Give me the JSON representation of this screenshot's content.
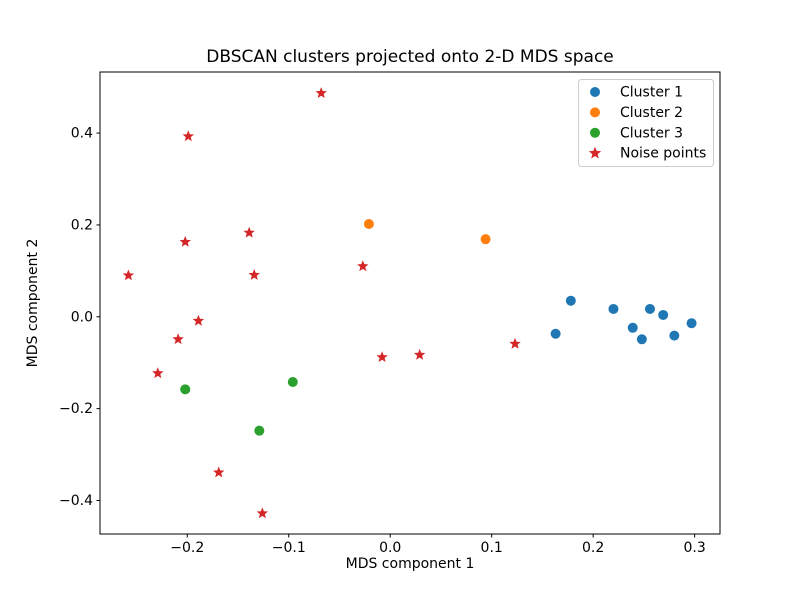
{
  "chart_data": {
    "type": "scatter",
    "title": "DBSCAN clusters projected onto 2-D MDS space",
    "xlabel": "MDS component 1",
    "ylabel": "MDS component 2",
    "xlim": [
      -0.286,
      0.325
    ],
    "ylim": [
      -0.473,
      0.533
    ],
    "xticks": [
      -0.2,
      -0.1,
      0.0,
      0.1,
      0.2,
      0.3
    ],
    "yticks": [
      -0.4,
      -0.2,
      0.0,
      0.2,
      0.4
    ],
    "grid": false,
    "background_color": "#ffffff",
    "spine_color": "#000000",
    "legend": {
      "position": "upper right",
      "border_color": "#cccccc",
      "background": "#ffffff"
    },
    "series": [
      {
        "name": "Cluster 1",
        "marker": "circle",
        "color": "#1f77b4",
        "points": [
          [
            0.163,
            -0.037
          ],
          [
            0.178,
            0.035
          ],
          [
            0.22,
            0.017
          ],
          [
            0.239,
            -0.024
          ],
          [
            0.248,
            -0.049
          ],
          [
            0.256,
            0.017
          ],
          [
            0.269,
            0.004
          ],
          [
            0.28,
            -0.041
          ],
          [
            0.297,
            -0.014
          ]
        ]
      },
      {
        "name": "Cluster 2",
        "marker": "circle",
        "color": "#ff7f0e",
        "points": [
          [
            -0.021,
            0.202
          ],
          [
            0.094,
            0.169
          ]
        ]
      },
      {
        "name": "Cluster 3",
        "marker": "circle",
        "color": "#2ca02c",
        "points": [
          [
            -0.202,
            -0.158
          ],
          [
            -0.096,
            -0.142
          ],
          [
            -0.129,
            -0.248
          ]
        ]
      },
      {
        "name": "Noise points",
        "marker": "star",
        "color": "#d62728",
        "points": [
          [
            -0.068,
            0.487
          ],
          [
            -0.199,
            0.393
          ],
          [
            -0.139,
            0.183
          ],
          [
            -0.202,
            0.163
          ],
          [
            -0.258,
            0.09
          ],
          [
            -0.134,
            0.091
          ],
          [
            -0.027,
            0.11
          ],
          [
            -0.189,
            -0.009
          ],
          [
            -0.209,
            -0.049
          ],
          [
            -0.229,
            -0.123
          ],
          [
            -0.008,
            -0.088
          ],
          [
            0.029,
            -0.083
          ],
          [
            0.123,
            -0.059
          ],
          [
            -0.169,
            -0.339
          ],
          [
            -0.126,
            -0.428
          ]
        ]
      }
    ]
  }
}
